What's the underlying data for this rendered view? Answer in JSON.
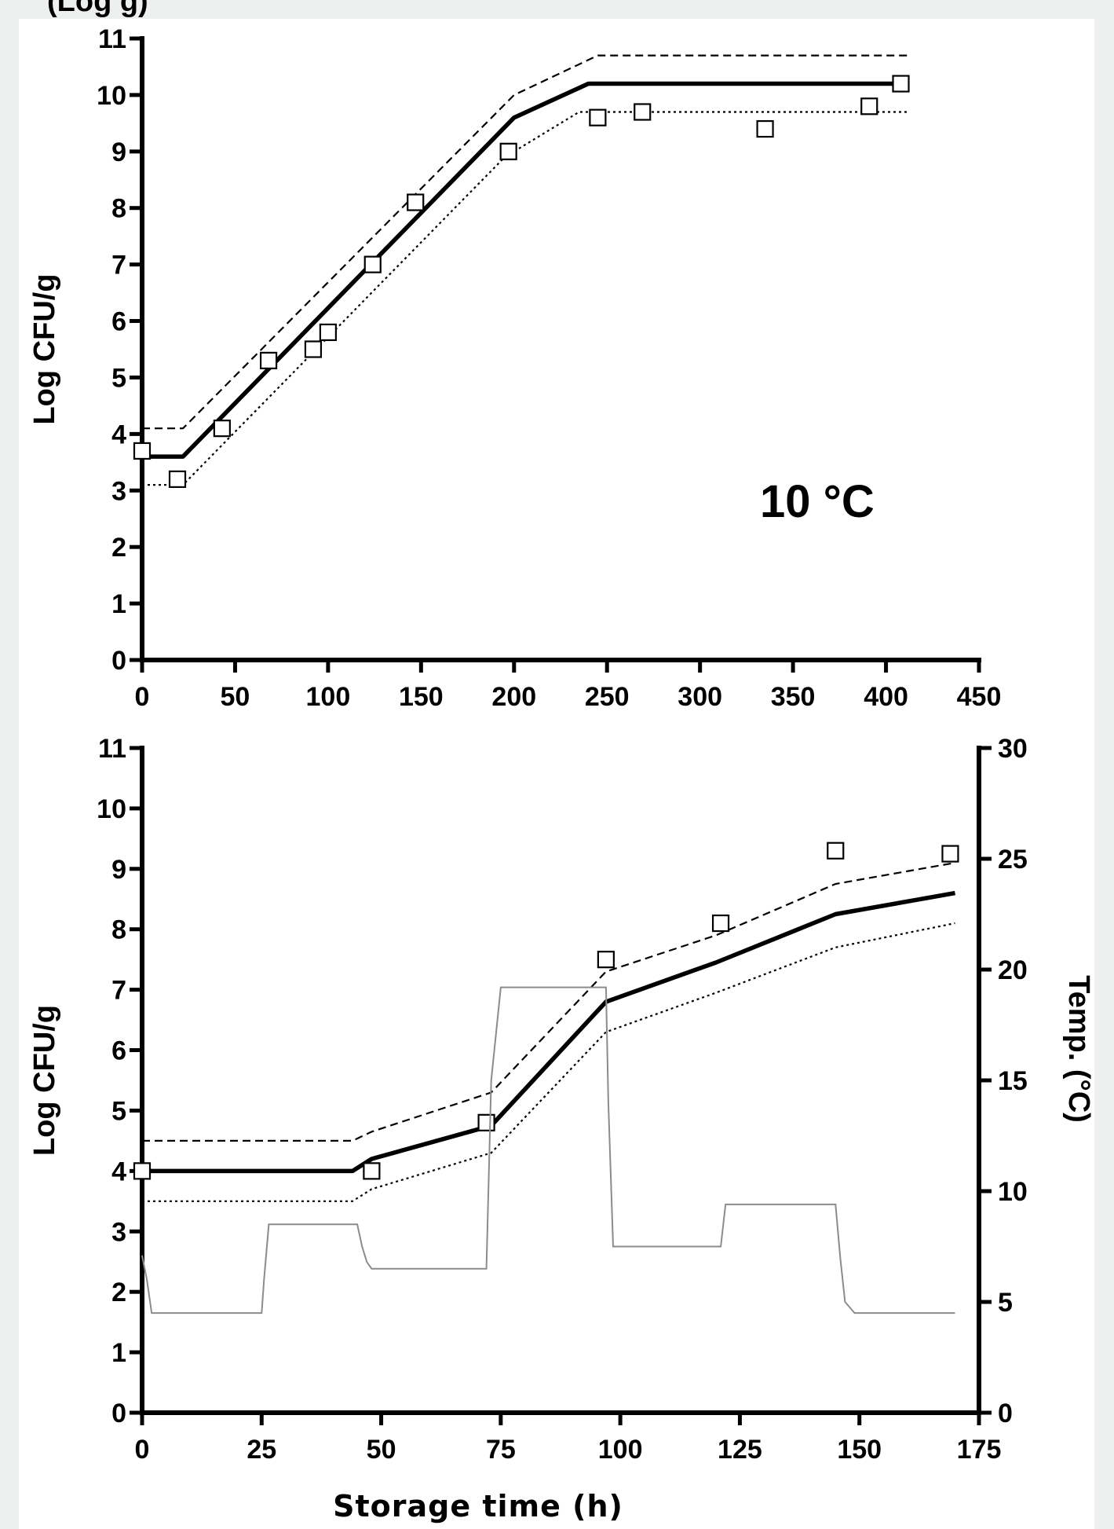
{
  "top_fragment": "(Log g)",
  "chart_data": [
    {
      "type": "line",
      "annotation": "10 °C",
      "xlabel": "",
      "ylabel": "Log CFU/g",
      "xlim": [
        0,
        450
      ],
      "ylim": [
        0,
        11
      ],
      "xticks": [
        0,
        50,
        100,
        150,
        200,
        250,
        300,
        350,
        400,
        450
      ],
      "yticks": [
        0,
        1,
        2,
        3,
        4,
        5,
        6,
        7,
        8,
        9,
        10,
        11
      ],
      "grid": false,
      "series": [
        {
          "style": "solid-thick",
          "x": [
            0,
            22,
            200,
            240,
            410
          ],
          "y": [
            3.6,
            3.6,
            9.6,
            10.2,
            10.2
          ]
        },
        {
          "style": "dashed",
          "x": [
            0,
            22,
            200,
            245,
            412
          ],
          "y": [
            4.1,
            4.1,
            10.0,
            10.7,
            10.7
          ]
        },
        {
          "style": "dotted",
          "x": [
            0,
            22,
            195,
            235,
            412
          ],
          "y": [
            3.1,
            3.1,
            8.9,
            9.7,
            9.7
          ]
        },
        {
          "style": "markers-square",
          "x": [
            0,
            19,
            43,
            68,
            92,
            100,
            124,
            147,
            197,
            245,
            269,
            335,
            391,
            408
          ],
          "y": [
            3.7,
            3.2,
            4.1,
            5.3,
            5.5,
            5.8,
            7.0,
            8.1,
            9.0,
            9.6,
            9.7,
            9.4,
            9.8,
            10.2
          ]
        }
      ],
      "colors": {
        "line": "#000000",
        "marker_fill": "#ffffff"
      }
    },
    {
      "type": "line",
      "xlabel": "Storage time (h)",
      "ylabel": "Log CFU/g",
      "y2label": "Temp. (°C)",
      "xlim": [
        0,
        175
      ],
      "ylim": [
        0,
        11
      ],
      "y2lim": [
        0,
        30
      ],
      "xticks": [
        0,
        25,
        50,
        75,
        100,
        125,
        150,
        175
      ],
      "yticks": [
        0,
        1,
        2,
        3,
        4,
        5,
        6,
        7,
        8,
        9,
        10,
        11
      ],
      "y2ticks": [
        0,
        5,
        10,
        15,
        20,
        25,
        30
      ],
      "grid": false,
      "series": [
        {
          "style": "solid-thick",
          "axis": "left",
          "x": [
            0,
            44,
            48,
            73,
            97,
            120,
            145,
            170
          ],
          "y": [
            4.0,
            4.0,
            4.2,
            4.75,
            6.8,
            7.45,
            8.25,
            8.6
          ]
        },
        {
          "style": "dashed",
          "axis": "left",
          "x": [
            0,
            44,
            48,
            73,
            97,
            120,
            145,
            170
          ],
          "y": [
            4.5,
            4.5,
            4.65,
            5.3,
            7.3,
            7.9,
            8.75,
            9.1
          ]
        },
        {
          "style": "dotted",
          "axis": "left",
          "x": [
            0,
            44,
            48,
            73,
            97,
            120,
            145,
            170
          ],
          "y": [
            3.5,
            3.5,
            3.7,
            4.3,
            6.3,
            6.95,
            7.7,
            8.1
          ]
        },
        {
          "style": "markers-square",
          "axis": "left",
          "x": [
            0,
            48,
            72,
            97,
            121,
            145,
            169
          ],
          "y": [
            4.0,
            4.0,
            4.8,
            7.5,
            8.1,
            9.3,
            9.25
          ]
        },
        {
          "style": "thin-gray",
          "axis": "right",
          "x": [
            0,
            1,
            2,
            25,
            25.5,
            26.5,
            44,
            45,
            46,
            47,
            48,
            72,
            73,
            75,
            97,
            97.5,
            98.5,
            121,
            122,
            145,
            146,
            147,
            149,
            170
          ],
          "y": [
            7.1,
            6,
            4.5,
            4.5,
            6,
            8.5,
            8.5,
            8.5,
            7.5,
            6.8,
            6.5,
            6.5,
            15,
            19.2,
            19.2,
            14,
            7.5,
            7.5,
            9.4,
            9.4,
            7,
            5,
            4.5,
            4.5
          ]
        }
      ],
      "colors": {
        "line": "#000000",
        "temperature": "#8c8c8c",
        "marker_fill": "#ffffff"
      }
    }
  ]
}
